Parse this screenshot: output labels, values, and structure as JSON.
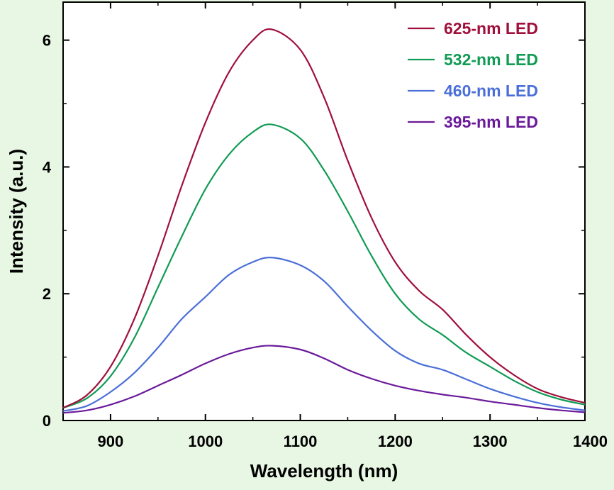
{
  "chart_data": {
    "type": "line",
    "title": "",
    "xlabel": "Wavelength (nm)",
    "ylabel": "Intensity (a.u.)",
    "xlim": [
      850,
      1400
    ],
    "ylim": [
      0,
      6.6
    ],
    "xticks": [
      900,
      1000,
      1100,
      1200,
      1300,
      1400
    ],
    "xtick_labels": [
      "900",
      "1000",
      "1100",
      "1200",
      "1300",
      "1400"
    ],
    "yticks": [
      0,
      2,
      4,
      6
    ],
    "ytick_labels": [
      "0",
      "2",
      "4",
      "6"
    ],
    "legend_position": "top-right",
    "x": [
      850,
      875,
      900,
      925,
      950,
      975,
      1000,
      1025,
      1050,
      1070,
      1100,
      1125,
      1150,
      1175,
      1200,
      1225,
      1250,
      1275,
      1300,
      1325,
      1350,
      1375,
      1400
    ],
    "series": [
      {
        "name": "625-nm LED",
        "color": "#a0103c",
        "values": [
          0.2,
          0.4,
          0.85,
          1.6,
          2.6,
          3.7,
          4.7,
          5.5,
          6.0,
          6.17,
          5.85,
          5.1,
          4.1,
          3.2,
          2.5,
          2.05,
          1.75,
          1.35,
          1.0,
          0.72,
          0.5,
          0.37,
          0.28
        ]
      },
      {
        "name": "532-nm LED",
        "color": "#119b55",
        "values": [
          0.2,
          0.35,
          0.7,
          1.3,
          2.1,
          2.9,
          3.65,
          4.2,
          4.55,
          4.67,
          4.45,
          3.95,
          3.3,
          2.6,
          2.0,
          1.6,
          1.35,
          1.07,
          0.85,
          0.63,
          0.45,
          0.33,
          0.25
        ]
      },
      {
        "name": "460-nm LED",
        "color": "#4a6fd8",
        "values": [
          0.15,
          0.23,
          0.45,
          0.75,
          1.15,
          1.6,
          1.95,
          2.3,
          2.5,
          2.57,
          2.45,
          2.2,
          1.8,
          1.42,
          1.1,
          0.9,
          0.8,
          0.65,
          0.5,
          0.38,
          0.28,
          0.21,
          0.16
        ]
      },
      {
        "name": "395-nm LED",
        "color": "#6a1a9a",
        "values": [
          0.12,
          0.16,
          0.25,
          0.38,
          0.55,
          0.72,
          0.9,
          1.05,
          1.15,
          1.18,
          1.12,
          0.98,
          0.8,
          0.66,
          0.55,
          0.47,
          0.41,
          0.36,
          0.3,
          0.25,
          0.2,
          0.16,
          0.13
        ]
      }
    ]
  }
}
